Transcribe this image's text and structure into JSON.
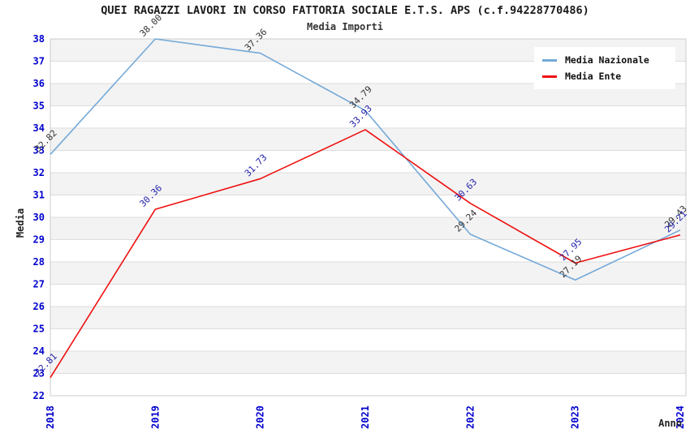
{
  "chart_data": {
    "type": "line",
    "title": "QUEI RAGAZZI LAVORI IN CORSO FATTORIA SOCIALE E.T.S. APS (c.f.94228770486)",
    "subtitle": "Media Importi",
    "xlabel": "Anno",
    "ylabel": "Media",
    "categories": [
      "2018",
      "2019",
      "2020",
      "2021",
      "2022",
      "2023",
      "2024"
    ],
    "series": [
      {
        "name": "Media Nazionale",
        "color": "#74A9D8",
        "label_color": "#333333",
        "values": [
          32.82,
          38.0,
          37.36,
          34.79,
          29.24,
          27.19,
          29.43
        ]
      },
      {
        "name": "Media Ente",
        "color": "#EE1111",
        "label_color": "#2222AA",
        "values": [
          22.81,
          30.36,
          31.73,
          33.93,
          30.63,
          27.95,
          29.21
        ]
      }
    ],
    "ylim": [
      22,
      38
    ],
    "ytick_step": 1,
    "grid": "on",
    "legend_position": "top-right",
    "styles": {
      "tick_color": "#0000CC",
      "band_color": "#F3F3F3",
      "grid_color": "#DDDDDD",
      "border_color": "#CCCCCC"
    }
  }
}
